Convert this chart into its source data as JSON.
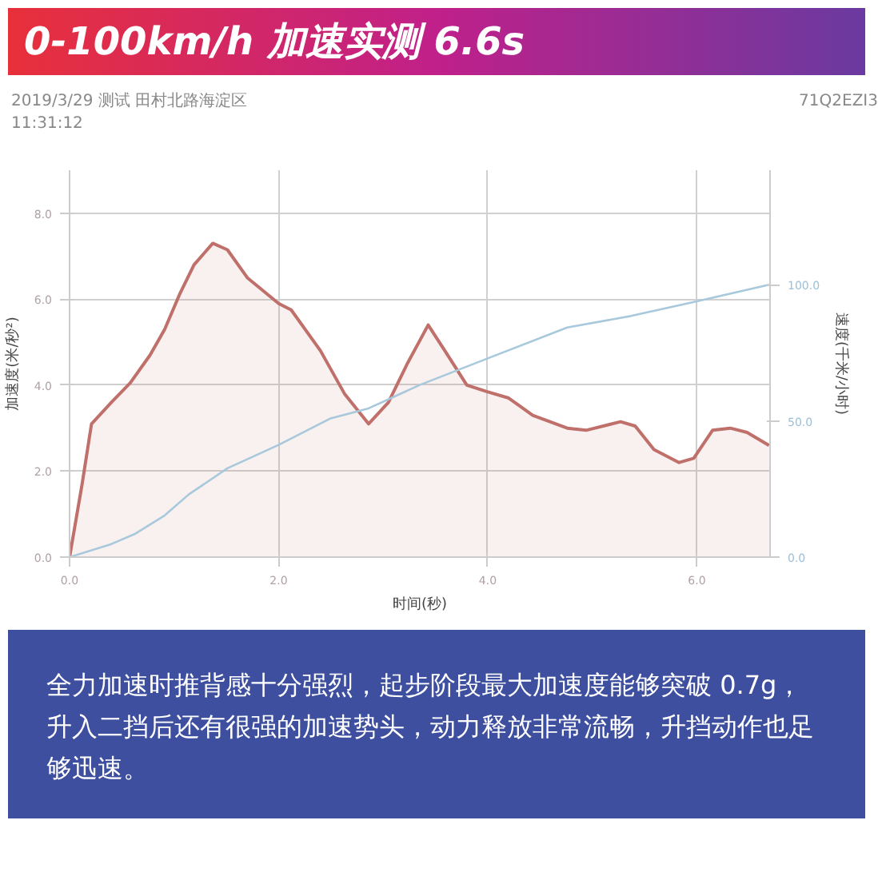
{
  "chart_data": {
    "type": "area",
    "title": "0-100km/h 加速实测 6.6s",
    "xlabel": "时间(秒)",
    "ylabel": "加速度(米/秒²)",
    "y2label": "速度(千米/小时)",
    "annotations": [
      "2019/3/29 测试 田村北路海淀区",
      "71Q2EZI3",
      "11:31:12",
      "全力加速时推背感十分强烈，起步阶段最大加速度能够突破 0.7g，升入二挡后还有很强的加速势头，动力释放非常流畅，升挡动作也足够迅速。"
    ],
    "xlim": [
      0,
      6.7
    ],
    "ylim": [
      0,
      9
    ],
    "y2lim": [
      0,
      142
    ],
    "xticks": [
      {
        "value": 0,
        "label": "0.0"
      },
      {
        "value": 2,
        "label": "2.0"
      },
      {
        "value": 4,
        "label": "4.0"
      },
      {
        "value": 6,
        "label": "6.0"
      }
    ],
    "yticks": [
      {
        "value": 0,
        "label": "0.0"
      },
      {
        "value": 2,
        "label": "2.0"
      },
      {
        "value": 4,
        "label": "4.0"
      },
      {
        "value": 6,
        "label": "6.0"
      },
      {
        "value": 8,
        "label": "8.0"
      }
    ],
    "y2ticks": [
      {
        "value": 0,
        "label": "0.0"
      },
      {
        "value": 50,
        "label": "50.0"
      },
      {
        "value": 100,
        "label": "100.0"
      }
    ],
    "grid": true,
    "series": [
      {
        "color": "#c0706a",
        "x": [
          0,
          0.12,
          0.21,
          0.4,
          0.58,
          0.77,
          0.91,
          1.05,
          1.19,
          1.37,
          1.51,
          1.7,
          2.0,
          2.12,
          2.4,
          2.63,
          2.86,
          3.05,
          3.23,
          3.43,
          3.59,
          3.8,
          3.99,
          4.2,
          4.43,
          4.76,
          4.94,
          5.27,
          5.41,
          5.59,
          5.83,
          5.97,
          6.15,
          6.32,
          6.48,
          6.69
        ],
        "values": [
          0,
          1.7,
          3.1,
          3.6,
          4.05,
          4.7,
          5.3,
          6.1,
          6.8,
          7.3,
          7.15,
          6.5,
          5.9,
          5.75,
          4.8,
          3.8,
          3.1,
          3.6,
          4.5,
          5.4,
          4.8,
          4.0,
          3.85,
          3.7,
          3.3,
          3.0,
          2.95,
          3.15,
          3.05,
          2.5,
          2.2,
          2.3,
          2.95,
          3.0,
          2.9,
          2.6
        ]
      },
      {
        "type": "line",
        "axis": "y2",
        "color": "#a8c8dc",
        "x": [
          0,
          0.4,
          0.63,
          0.91,
          1.14,
          1.51,
          2.0,
          2.49,
          2.86,
          3.35,
          3.99,
          4.76,
          5.37,
          6.0,
          6.69
        ],
        "values": [
          0,
          4.8,
          8.6,
          15.3,
          23,
          32.6,
          41.2,
          50.8,
          54.6,
          63.2,
          72.8,
          84.3,
          88.5,
          93.9,
          100
        ]
      }
    ]
  }
}
